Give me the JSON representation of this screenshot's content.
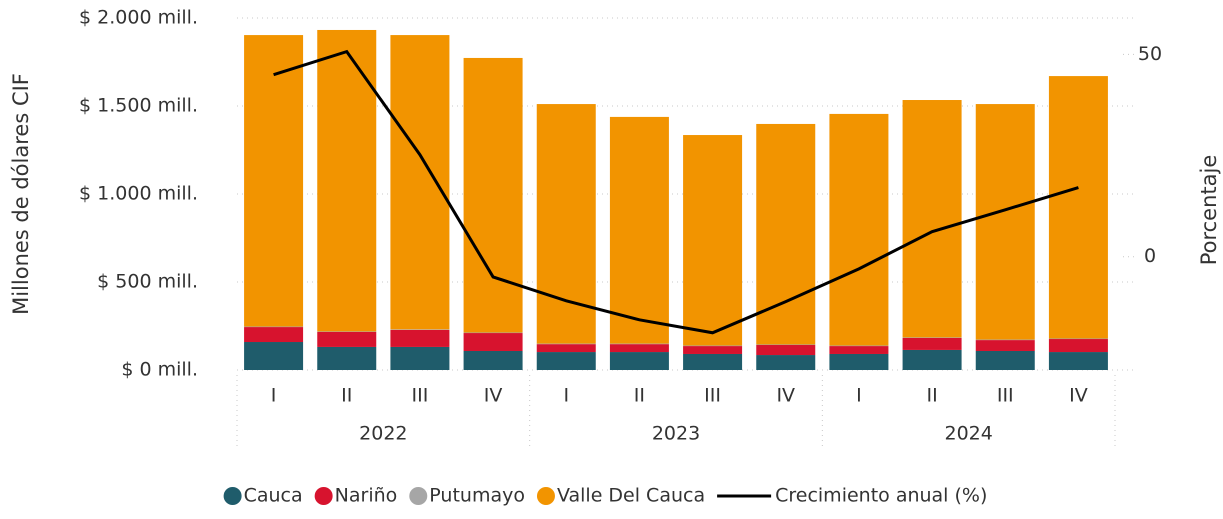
{
  "chart_data": {
    "type": "bar",
    "stacked": true,
    "y_axis_label": "Millones de dólares CIF",
    "y2_axis_label": "Porcentaje",
    "categories": [
      "I",
      "II",
      "III",
      "IV",
      "I",
      "II",
      "III",
      "IV",
      "I",
      "II",
      "III",
      "IV"
    ],
    "groups": [
      "2022",
      "2023",
      "2024"
    ],
    "ylim": [
      0,
      2000
    ],
    "yticks": [
      {
        "value": 0,
        "label": "$ 0 mill."
      },
      {
        "value": 500,
        "label": "$ 500 mill."
      },
      {
        "value": 1000,
        "label": "$ 1.000 mill."
      },
      {
        "value": 1500,
        "label": "$ 1.500 mill."
      },
      {
        "value": 2000,
        "label": "$ 2.000 mill."
      }
    ],
    "y2lim": [
      -28,
      59
    ],
    "y2ticks": [
      0,
      50
    ],
    "grid": true,
    "legend": "bottom",
    "series": [
      {
        "name": "Cauca",
        "color": "#1f5c6b",
        "values": [
          159,
          131,
          131,
          108,
          102,
          102,
          91,
          85,
          91,
          114,
          108,
          102
        ]
      },
      {
        "name": "Nariño",
        "color": "#d7132e",
        "values": [
          85,
          85,
          97,
          102,
          45,
          45,
          45,
          57,
          45,
          68,
          62,
          74
        ]
      },
      {
        "name": "Putumayo",
        "color": "#a6a6a6",
        "values": [
          3,
          3,
          3,
          3,
          3,
          3,
          3,
          3,
          3,
          3,
          3,
          3
        ]
      },
      {
        "name": "Valle Del Cauca",
        "color": "#f29400",
        "values": [
          1656,
          1713,
          1672,
          1560,
          1361,
          1288,
          1196,
          1253,
          1316,
          1349,
          1338,
          1491
        ]
      },
      {
        "name": "Crecimiento anual (%)",
        "color": "#000000",
        "type": "line",
        "axis": "y2",
        "values": [
          45,
          50.7,
          25.2,
          -5,
          -10.9,
          -15.6,
          -18.8,
          -11.1,
          -3,
          6.2,
          11.6,
          17.1
        ]
      }
    ]
  }
}
